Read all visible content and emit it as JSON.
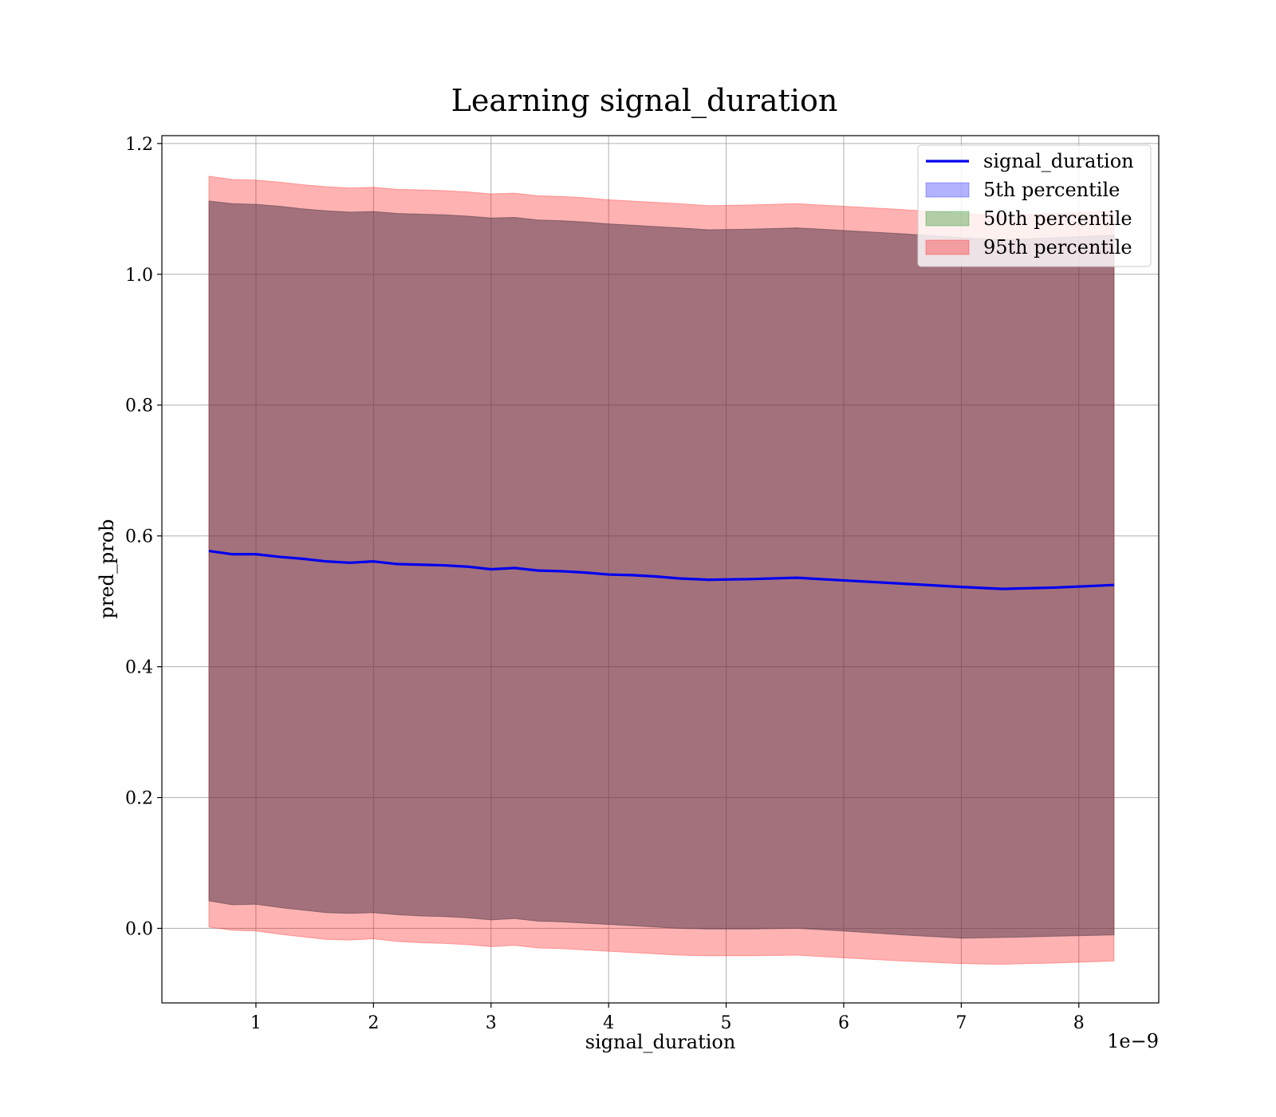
{
  "chart_data": {
    "type": "line",
    "title": "Learning signal_duration",
    "xlabel": "signal_duration",
    "ylabel": "pred_prob",
    "x_offset_label": "1e−9",
    "xlim": [
      2e-10,
      8.68e-09
    ],
    "ylim": [
      -0.114,
      1.212
    ],
    "x_ticks": [
      1e-09,
      2e-09,
      3e-09,
      4e-09,
      5e-09,
      6e-09,
      7e-09,
      8e-09
    ],
    "x_tick_labels": [
      "1",
      "2",
      "3",
      "4",
      "5",
      "6",
      "7",
      "8"
    ],
    "y_ticks": [
      0.0,
      0.2,
      0.4,
      0.6,
      0.8,
      1.0,
      1.2
    ],
    "y_tick_labels": [
      "0.0",
      "0.2",
      "0.4",
      "0.6",
      "0.8",
      "1.0",
      "1.2"
    ],
    "grid": true,
    "legend_position": "top-right",
    "x": [
      6e-10,
      8e-10,
      1e-09,
      1.2e-09,
      1.4e-09,
      1.6e-09,
      1.8e-09,
      2e-09,
      2.2e-09,
      2.4e-09,
      2.6e-09,
      2.8e-09,
      3e-09,
      3.2e-09,
      3.4e-09,
      3.6e-09,
      3.8e-09,
      4e-09,
      4.2e-09,
      4.4e-09,
      4.6e-09,
      4.85e-09,
      5.2e-09,
      5.6e-09,
      6e-09,
      6.5e-09,
      7e-09,
      7.35e-09,
      7.8e-09,
      8.3e-09
    ],
    "series": [
      {
        "name": "signal_duration",
        "kind": "line",
        "color": "#0000ee",
        "values": [
          0.577,
          0.572,
          0.572,
          0.568,
          0.565,
          0.561,
          0.559,
          0.561,
          0.557,
          0.556,
          0.555,
          0.553,
          0.549,
          0.551,
          0.547,
          0.546,
          0.544,
          0.541,
          0.54,
          0.538,
          0.535,
          0.533,
          0.534,
          0.536,
          0.532,
          0.527,
          0.522,
          0.519,
          0.521,
          0.525
        ]
      },
      {
        "name": "5th percentile",
        "kind": "band",
        "color": "#0000ff",
        "lower": [
          0.042,
          0.036,
          0.037,
          0.032,
          0.028,
          0.024,
          0.023,
          0.024,
          0.021,
          0.019,
          0.018,
          0.016,
          0.013,
          0.015,
          0.011,
          0.01,
          0.008,
          0.006,
          0.004,
          0.002,
          0.0,
          -0.001,
          -0.001,
          0.0,
          -0.004,
          -0.01,
          -0.015,
          -0.014,
          -0.012,
          -0.01
        ],
        "upper": [
          1.112,
          1.108,
          1.107,
          1.104,
          1.1,
          1.097,
          1.095,
          1.096,
          1.093,
          1.092,
          1.091,
          1.089,
          1.086,
          1.087,
          1.083,
          1.082,
          1.08,
          1.077,
          1.075,
          1.073,
          1.071,
          1.068,
          1.069,
          1.071,
          1.067,
          1.062,
          1.056,
          1.053,
          1.056,
          1.06
        ]
      },
      {
        "name": "50th percentile",
        "kind": "band",
        "color": "#008000",
        "lower": [
          0.042,
          0.036,
          0.037,
          0.032,
          0.028,
          0.024,
          0.023,
          0.024,
          0.021,
          0.019,
          0.018,
          0.016,
          0.013,
          0.015,
          0.011,
          0.01,
          0.008,
          0.006,
          0.004,
          0.002,
          0.0,
          -0.001,
          -0.001,
          0.0,
          -0.004,
          -0.01,
          -0.015,
          -0.014,
          -0.012,
          -0.01
        ],
        "upper": [
          1.112,
          1.108,
          1.107,
          1.104,
          1.1,
          1.097,
          1.095,
          1.096,
          1.093,
          1.092,
          1.091,
          1.089,
          1.086,
          1.087,
          1.083,
          1.082,
          1.08,
          1.077,
          1.075,
          1.073,
          1.071,
          1.068,
          1.069,
          1.071,
          1.067,
          1.062,
          1.056,
          1.053,
          1.056,
          1.06
        ]
      },
      {
        "name": "95th percentile",
        "kind": "band",
        "color": "#ff0000",
        "lower": [
          0.002,
          -0.003,
          -0.004,
          -0.009,
          -0.013,
          -0.017,
          -0.018,
          -0.016,
          -0.02,
          -0.022,
          -0.023,
          -0.025,
          -0.028,
          -0.026,
          -0.03,
          -0.031,
          -0.033,
          -0.035,
          -0.037,
          -0.039,
          -0.041,
          -0.042,
          -0.042,
          -0.041,
          -0.045,
          -0.05,
          -0.054,
          -0.055,
          -0.053,
          -0.05
        ],
        "upper": [
          1.15,
          1.145,
          1.144,
          1.141,
          1.137,
          1.134,
          1.132,
          1.133,
          1.13,
          1.129,
          1.128,
          1.126,
          1.123,
          1.124,
          1.12,
          1.119,
          1.117,
          1.114,
          1.112,
          1.11,
          1.108,
          1.105,
          1.106,
          1.108,
          1.104,
          1.099,
          1.093,
          1.09,
          1.093,
          1.097
        ]
      }
    ]
  }
}
